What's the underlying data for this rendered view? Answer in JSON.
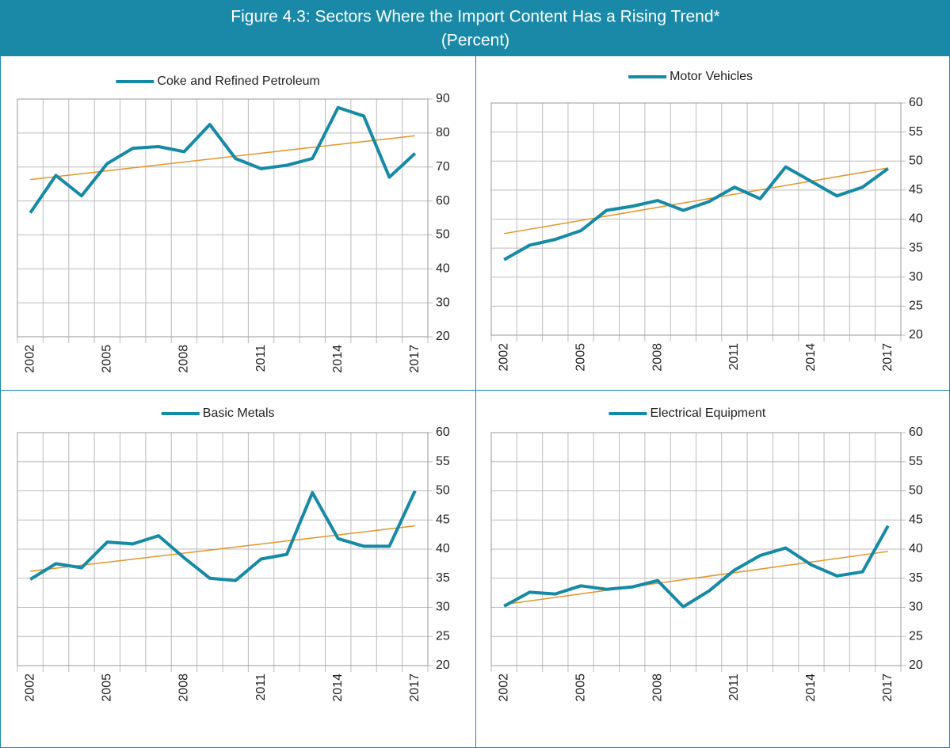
{
  "header": {
    "title": "Figure 4.3: Sectors Where the Import Content Has a Rising Trend*",
    "subtitle": "(Percent)"
  },
  "chart_data": [
    {
      "type": "line",
      "categories": [
        "2002",
        null,
        null,
        "2005",
        null,
        null,
        "2008",
        null,
        null,
        "2011",
        null,
        null,
        "2014",
        null,
        null,
        "2017"
      ],
      "series": [
        {
          "name": "Coke and Refined Petroleum",
          "color": "#168aa5",
          "values": [
            56.5,
            67.5,
            61.5,
            71,
            75.5,
            76,
            74.5,
            82.5,
            72.5,
            69.5,
            70.5,
            72.5,
            87.5,
            85,
            67,
            74
          ]
        }
      ],
      "trend": {
        "color": "#e0952a",
        "values": [
          66.3,
          79.2
        ]
      },
      "ylim": [
        20,
        90
      ],
      "yticks": [
        20,
        30,
        40,
        50,
        60,
        70,
        80,
        90
      ],
      "grid": true
    },
    {
      "type": "line",
      "categories": [
        "2002",
        null,
        null,
        "2005",
        null,
        null,
        "2008",
        null,
        null,
        "2011",
        null,
        null,
        "2014",
        null,
        null,
        "2017"
      ],
      "series": [
        {
          "name": "Motor Vehicles",
          "color": "#168aa5",
          "values": [
            33,
            35.5,
            36.5,
            38,
            41.5,
            42.2,
            43.2,
            41.5,
            43,
            45.5,
            43.5,
            49,
            46.5,
            44,
            45.5,
            48.7
          ]
        }
      ],
      "trend": {
        "color": "#e0952a",
        "values": [
          37.5,
          48.8
        ]
      },
      "ylim": [
        20,
        60
      ],
      "yticks": [
        20,
        25,
        30,
        35,
        40,
        45,
        50,
        55,
        60
      ],
      "grid": true
    },
    {
      "type": "line",
      "categories": [
        "2002",
        null,
        null,
        "2005",
        null,
        null,
        "2008",
        null,
        null,
        "2011",
        null,
        null,
        "2014",
        null,
        null,
        "2017"
      ],
      "series": [
        {
          "name": "Basic Metals",
          "color": "#168aa5",
          "values": [
            34.8,
            37.5,
            36.8,
            41.2,
            40.9,
            42.3,
            38.5,
            35,
            34.6,
            38.3,
            39.1,
            49.7,
            41.8,
            40.5,
            40.5,
            50
          ]
        }
      ],
      "trend": {
        "color": "#e0952a",
        "values": [
          36.2,
          44
        ]
      },
      "ylim": [
        20,
        60
      ],
      "yticks": [
        20,
        25,
        30,
        35,
        40,
        45,
        50,
        55,
        60
      ],
      "grid": true
    },
    {
      "type": "line",
      "categories": [
        "2002",
        null,
        null,
        "2005",
        null,
        null,
        "2008",
        null,
        null,
        "2011",
        null,
        null,
        "2014",
        null,
        null,
        "2017"
      ],
      "series": [
        {
          "name": "Electrical Equipment",
          "color": "#168aa5",
          "values": [
            30.2,
            32.6,
            32.3,
            33.7,
            33.1,
            33.5,
            34.6,
            30.1,
            32.8,
            36.4,
            38.9,
            40.2,
            37.3,
            35.4,
            36.1,
            44
          ]
        }
      ],
      "trend": {
        "color": "#e0952a",
        "values": [
          30.5,
          39.6
        ]
      },
      "ylim": [
        20,
        60
      ],
      "yticks": [
        20,
        25,
        30,
        35,
        40,
        45,
        50,
        55,
        60
      ],
      "grid": true
    }
  ]
}
